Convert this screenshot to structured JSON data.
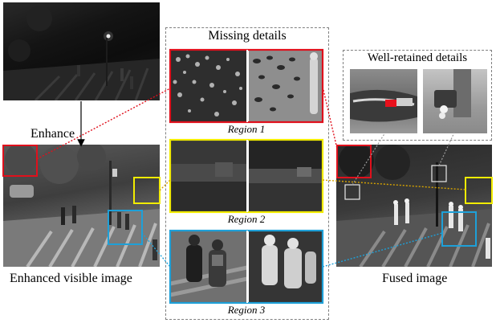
{
  "labels": {
    "enhance": "Enhance",
    "missing_details": "Missing details",
    "well_retained_details": "Well-retained details",
    "enhanced_visible_image": "Enhanced visible image",
    "fused_image": "Fused image",
    "region1": "Region 1",
    "region2": "Region 2",
    "region3": "Region 3"
  },
  "colors": {
    "region1": "#e0101c",
    "region2": "#f2ec00",
    "region3": "#1ea0d8",
    "dashed_frame": "#808080"
  }
}
